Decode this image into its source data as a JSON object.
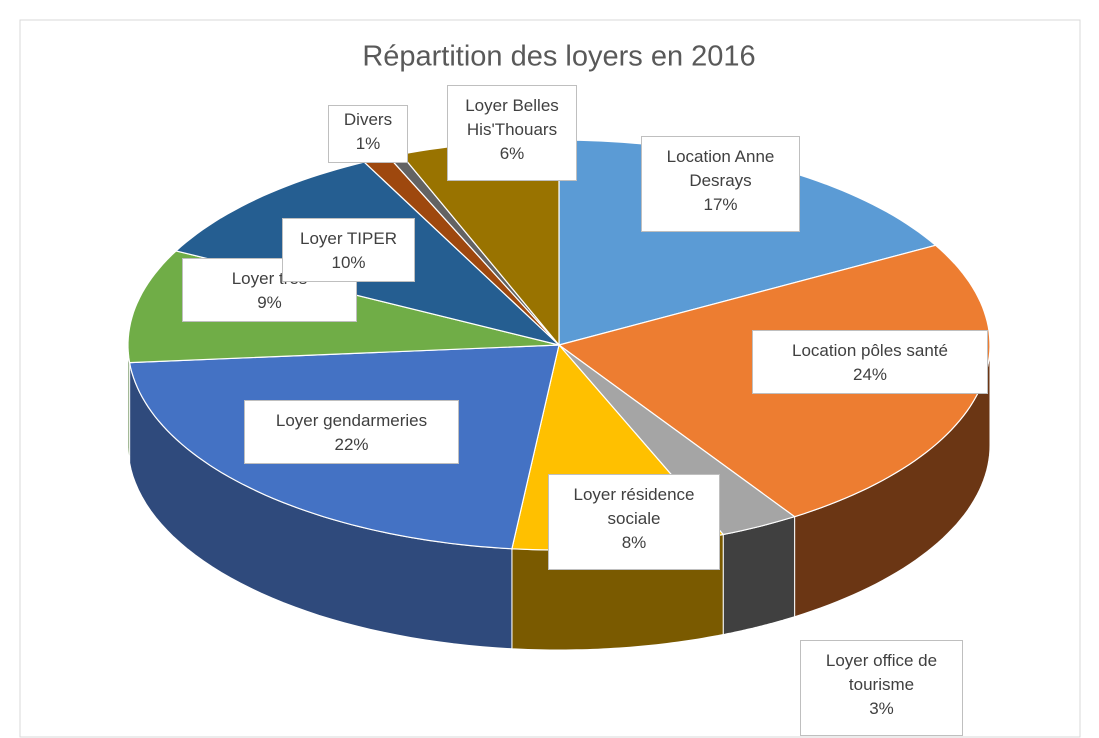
{
  "chart_data": {
    "type": "pie3d",
    "title": "Répartition des loyers en 2016",
    "categories": [
      "Location Anne Desrays",
      "Location pôles santé",
      "Loyer office de tourisme",
      "Loyer résidence sociale",
      "Loyer gendarmeries",
      "Loyer trés",
      "Loyer TIPER",
      "Divers",
      null,
      "Loyer Belles His'Thouars"
    ],
    "values": [
      17,
      24,
      3,
      8,
      22,
      9,
      10,
      1,
      0.5,
      6
    ],
    "value_labels": [
      "17%",
      "24%",
      "3%",
      "8%",
      "22%",
      "9%",
      "10%",
      "1%",
      null,
      "6%"
    ],
    "colors": [
      "#5b9bd5",
      "#ed7d31",
      "#a5a5a5",
      "#ffc000",
      "#4472c4",
      "#70ad47",
      "#255e91",
      "#9e480e",
      "#636363",
      "#997300"
    ],
    "side_colors": [
      "#3f6d96",
      "#6b3614",
      "#404040",
      "#7a5a00",
      "#2f4a7c",
      "#4a7530",
      "#1b4368",
      "#6b300a",
      "#444444",
      "#6b5000"
    ]
  }
}
